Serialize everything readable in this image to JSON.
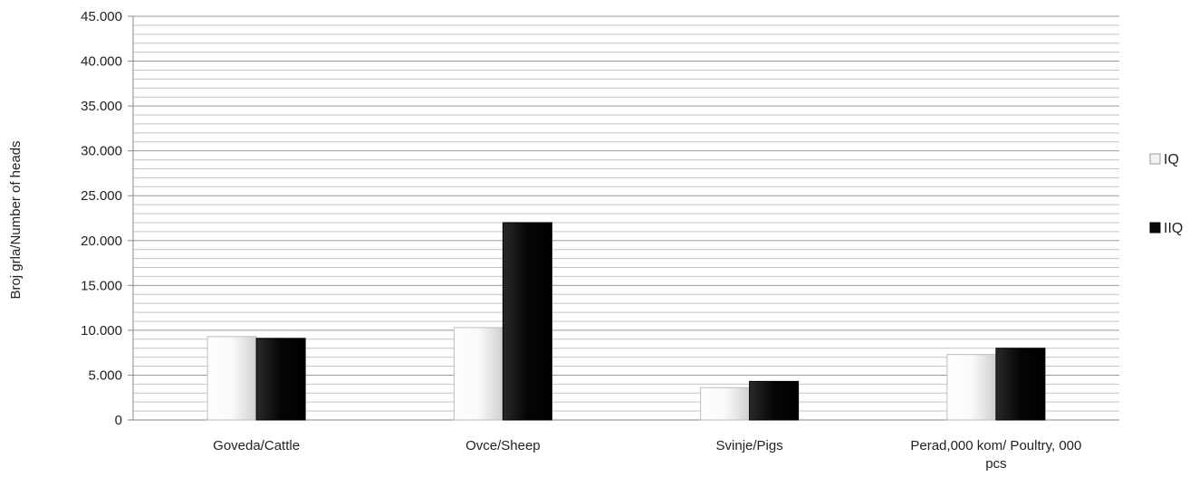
{
  "chart_data": {
    "type": "bar",
    "categories": [
      "Goveda/Cattle",
      "Ovce/Sheep",
      "Svinje/Pigs",
      "Perad,000 kom/ Poultry, 000 pcs"
    ],
    "series": [
      {
        "name": "IQ",
        "values": [
          9300,
          10300,
          3600,
          7300
        ],
        "color": "#f2f2f2"
      },
      {
        "name": "IIQ",
        "values": [
          9100,
          22000,
          4300,
          8000
        ],
        "color": "#0a0a0a"
      }
    ],
    "yticks": [
      "0",
      "5.000",
      "10.000",
      "15.000",
      "20.000",
      "25.000",
      "30.000",
      "35.000",
      "40.000",
      "45.000"
    ],
    "ylim": [
      0,
      45000
    ],
    "ylabel": "Broj grla/Number of heads",
    "xlabel": "",
    "grid": true,
    "legend_position": "right"
  }
}
